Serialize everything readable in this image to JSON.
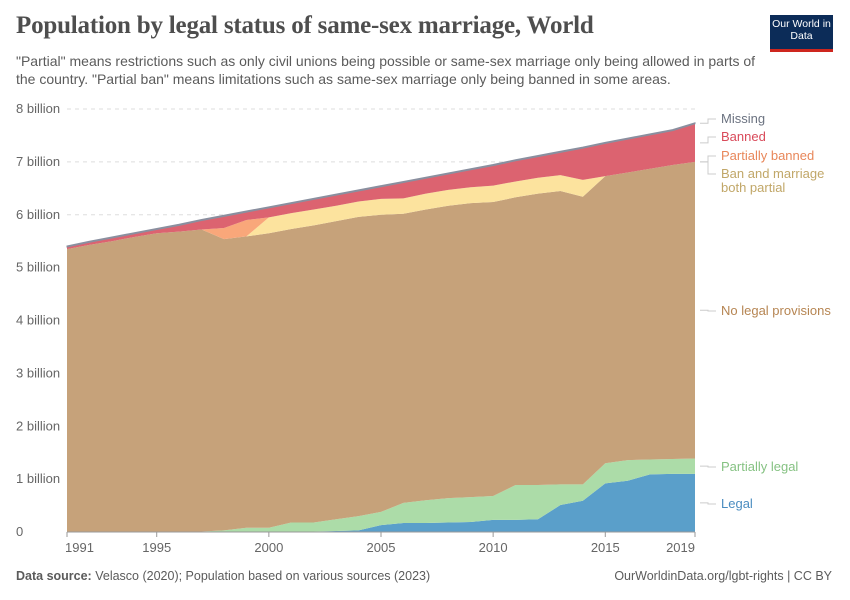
{
  "title": "Population by legal status of same-sex marriage, World",
  "subtitle": "\"Partial\" means restrictions such as only civil unions being possible or same-sex marriage only being allowed in parts of the country. \"Partial ban\" means limitations such as same-sex marriage only being banned in some areas.",
  "logo": "Our World in Data",
  "footer": {
    "source_label": "Data source:",
    "source_text": "Velasco (2020); Population based on various sources (2023)",
    "right": "OurWorldinData.org/lgbt-rights | CC BY"
  },
  "chart_data": {
    "type": "area",
    "stacked": true,
    "x": [
      1991,
      1992,
      1993,
      1994,
      1995,
      1996,
      1997,
      1998,
      1999,
      2000,
      2001,
      2002,
      2003,
      2004,
      2005,
      2006,
      2007,
      2008,
      2009,
      2010,
      2011,
      2012,
      2013,
      2014,
      2015,
      2016,
      2017,
      2018,
      2019
    ],
    "xticks": [
      "1991",
      "1995",
      "2000",
      "2005",
      "2010",
      "2015",
      "2019"
    ],
    "yticks": [
      "0",
      "1 billion",
      "2 billion",
      "3 billion",
      "4 billion",
      "5 billion",
      "6 billion",
      "7 billion",
      "8 billion"
    ],
    "ylim": [
      0,
      8
    ],
    "yunit": "billion",
    "grid": true,
    "legend": "right, inline labels",
    "series": [
      {
        "name": "Legal",
        "color": "#5a9fca",
        "label_color": "#4a8cc0",
        "values": [
          0,
          0,
          0,
          0,
          0,
          0,
          0,
          0,
          0,
          0.01,
          0.01,
          0.01,
          0.02,
          0.03,
          0.13,
          0.17,
          0.17,
          0.18,
          0.19,
          0.23,
          0.23,
          0.24,
          0.51,
          0.59,
          0.92,
          0.97,
          1.09,
          1.1,
          1.1
        ]
      },
      {
        "name": "Partially legal",
        "color": "#acdca8",
        "label_color": "#86c283",
        "values": [
          0,
          0,
          0,
          0,
          0,
          0,
          0.01,
          0.03,
          0.08,
          0.07,
          0.17,
          0.17,
          0.22,
          0.27,
          0.25,
          0.38,
          0.43,
          0.46,
          0.47,
          0.45,
          0.66,
          0.65,
          0.39,
          0.31,
          0.38,
          0.39,
          0.28,
          0.28,
          0.29
        ]
      },
      {
        "name": "No legal provisions",
        "color": "#c6a27a",
        "label_color": "#b68552",
        "values": [
          5.35,
          5.43,
          5.5,
          5.58,
          5.65,
          5.68,
          5.71,
          5.51,
          5.51,
          5.57,
          5.55,
          5.62,
          5.64,
          5.66,
          5.62,
          5.47,
          5.5,
          5.53,
          5.56,
          5.56,
          5.44,
          5.51,
          5.55,
          5.44,
          5.43,
          5.44,
          5.5,
          5.56,
          5.61
        ]
      },
      {
        "name": "Ban and marriage both partial",
        "color": "#fce39e",
        "label_color": "#c1a768",
        "values": [
          0,
          0,
          0,
          0,
          0,
          0,
          0,
          0,
          0,
          0.3,
          0.3,
          0.3,
          0.29,
          0.29,
          0.3,
          0.29,
          0.3,
          0.3,
          0.3,
          0.31,
          0.3,
          0.3,
          0.3,
          0.32,
          0,
          0,
          0,
          0,
          0
        ]
      },
      {
        "name": "Partially banned",
        "color": "#f9a77a",
        "label_color": "#e8875a",
        "values": [
          0,
          0,
          0,
          0,
          0,
          0,
          0,
          0.21,
          0.31,
          0,
          0,
          0,
          0,
          0,
          0,
          0,
          0,
          0,
          0,
          0,
          0,
          0,
          0,
          0,
          0,
          0,
          0,
          0,
          0
        ]
      },
      {
        "name": "Banned",
        "color": "#dc6370",
        "label_color": "#d94a5a",
        "values": [
          0.04,
          0.05,
          0.06,
          0.06,
          0.07,
          0.12,
          0.17,
          0.22,
          0.15,
          0.18,
          0.18,
          0.19,
          0.2,
          0.2,
          0.23,
          0.3,
          0.29,
          0.3,
          0.33,
          0.38,
          0.39,
          0.4,
          0.43,
          0.6,
          0.62,
          0.63,
          0.64,
          0.65,
          0.72
        ]
      },
      {
        "name": "Missing",
        "color": "#8a8f9f",
        "label_color": "#6b7280",
        "values": [
          0.02,
          0.02,
          0.02,
          0.02,
          0.02,
          0.02,
          0.02,
          0.02,
          0.02,
          0.02,
          0.02,
          0.02,
          0.02,
          0.02,
          0.02,
          0.02,
          0.02,
          0.02,
          0.02,
          0.02,
          0.02,
          0.02,
          0.02,
          0.02,
          0.02,
          0.02,
          0.02,
          0.02,
          0.02
        ]
      }
    ]
  }
}
